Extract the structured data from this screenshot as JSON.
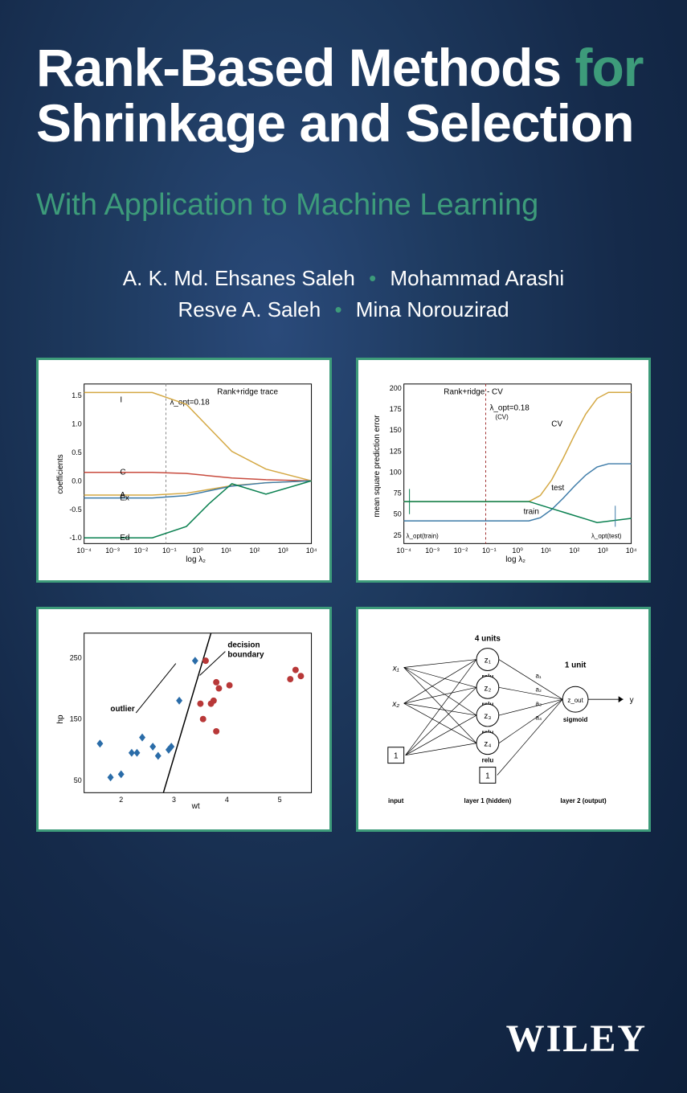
{
  "title": {
    "line1_a": "Rank-Based Methods",
    "line1_b": "for",
    "line2": "Shrinkage and Selection"
  },
  "subtitle": "With Application to Machine Learning",
  "authors": {
    "row1_left": "A. K. Md. Ehsanes Saleh",
    "row1_right": "Mohammad Arashi",
    "row2_left": "Resve A. Saleh",
    "row2_right": "Mina Norouzirad"
  },
  "publisher": "WILEY",
  "colors": {
    "accent": "#3d9b7a",
    "bg_dark": "#152a4a",
    "white": "#ffffff",
    "line_orange": "#d4a843",
    "line_red": "#c84b3e",
    "line_blue": "#3d7ba8",
    "line_green": "#0a8050",
    "point_blue": "#2a6ca8",
    "point_red": "#b83838"
  },
  "panel_tl": {
    "title": "Rank+ridge trace",
    "lambda_text": "λ_opt=0.18",
    "ylabel": "coefficients",
    "xlabel": "log λ₂",
    "yticks": [
      "-1.0",
      "-0.5",
      "0.0",
      "0.5",
      "1.0",
      "1.5"
    ],
    "xticks": [
      "10⁻⁴",
      "10⁻³",
      "10⁻²",
      "10⁻¹",
      "10⁰",
      "10¹",
      "10²",
      "10³",
      "10⁴"
    ],
    "series": [
      {
        "label": "I",
        "color": "#d4a843",
        "y0": 1.55,
        "y1": 0.0
      },
      {
        "label": "C",
        "color": "#c84b3e",
        "y0": 0.15,
        "y1": 0.0
      },
      {
        "label": "A",
        "color": "#d4a843",
        "y0": -0.25,
        "y1": 0.0
      },
      {
        "label": "Ex",
        "color": "#3d7ba8",
        "y0": -0.3,
        "y1": 0.0
      },
      {
        "label": "Ed",
        "color": "#0a8050",
        "y0": -1.0,
        "y1": 0.0
      }
    ],
    "ylim": [
      -1.1,
      1.7
    ],
    "lambda_vline_x": 0.36
  },
  "panel_tr": {
    "title": "Rank+ridge - CV",
    "lambda_text": "λ_opt=0.18",
    "lambda_sub": "(CV)",
    "ylabel": "mean square prediction error",
    "xlabel": "log λ₂",
    "yticks": [
      "25",
      "50",
      "75",
      "100",
      "125",
      "150",
      "175",
      "200"
    ],
    "xticks": [
      "10⁻⁴",
      "10⁻³",
      "10⁻²",
      "10⁻¹",
      "10⁰",
      "10¹",
      "10²",
      "10³",
      "10⁴"
    ],
    "labels": {
      "cv": "CV",
      "test": "test",
      "train": "train",
      "lopt_train": "λ_opt(train)",
      "lopt_test": "λ_opt(test)"
    },
    "series": {
      "cv": {
        "color": "#d4a843",
        "start": 65,
        "end": 195
      },
      "test": {
        "color": "#3d7ba8",
        "start": 42,
        "end": 110
      },
      "train": {
        "color": "#0a8050",
        "start": 65,
        "end": 45
      }
    },
    "ylim": [
      15,
      205
    ],
    "lambda_vline_x": 0.36
  },
  "panel_bl": {
    "ylabel": "hp",
    "xlabel": "wt",
    "xticks": [
      "2",
      "3",
      "4",
      "5"
    ],
    "yticks": [
      "50",
      "150",
      "250"
    ],
    "outlier_label": "outlier",
    "boundary_label": "decision\nboundary",
    "blue_points": [
      [
        1.6,
        110
      ],
      [
        1.8,
        55
      ],
      [
        2.0,
        60
      ],
      [
        2.2,
        95
      ],
      [
        2.3,
        95
      ],
      [
        2.4,
        120
      ],
      [
        2.6,
        105
      ],
      [
        2.7,
        90
      ],
      [
        2.9,
        100
      ],
      [
        2.95,
        105
      ],
      [
        3.1,
        180
      ],
      [
        3.4,
        245
      ]
    ],
    "red_points": [
      [
        3.5,
        175
      ],
      [
        3.55,
        150
      ],
      [
        3.6,
        245
      ],
      [
        3.7,
        175
      ],
      [
        3.75,
        180
      ],
      [
        3.8,
        210
      ],
      [
        3.85,
        200
      ],
      [
        3.8,
        130
      ],
      [
        4.05,
        205
      ],
      [
        5.2,
        215
      ],
      [
        5.3,
        230
      ],
      [
        5.4,
        220
      ]
    ],
    "xlim": [
      1.3,
      5.6
    ],
    "ylim": [
      30,
      290
    ],
    "boundary_line": {
      "x1": 2.8,
      "y1": 30,
      "x2": 3.7,
      "y2": 290
    }
  },
  "panel_br": {
    "inputs": [
      "x₁",
      "x₂"
    ],
    "bias": "1",
    "units_label": "4 units",
    "output_label": "1 unit",
    "hidden_nodes": [
      "z₁",
      "z₂",
      "z₃",
      "z₄"
    ],
    "hidden_act": "relu",
    "edge_labels": [
      "a₁",
      "a₂",
      "a₃",
      "a₄"
    ],
    "output_node": "z_out",
    "output_act": "sigmoid",
    "output_var": "y",
    "layer_labels": [
      "input",
      "layer 1 (hidden)",
      "layer 2 (output)"
    ]
  }
}
